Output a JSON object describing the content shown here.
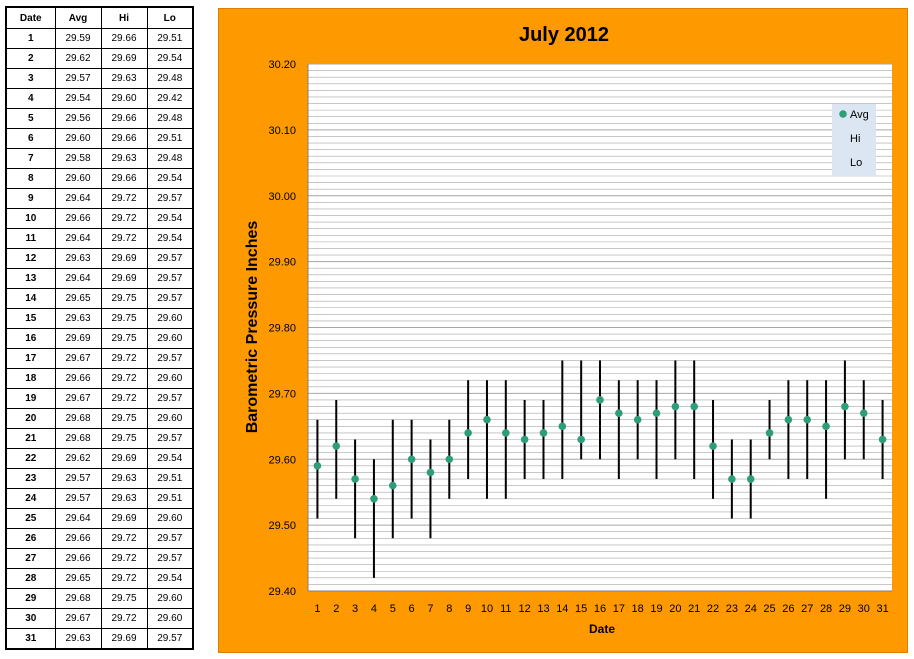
{
  "table": {
    "headers": [
      "Date",
      "Avg",
      "Hi",
      "Lo"
    ],
    "rows": [
      [
        "1",
        "29.59",
        "29.66",
        "29.51"
      ],
      [
        "2",
        "29.62",
        "29.69",
        "29.54"
      ],
      [
        "3",
        "29.57",
        "29.63",
        "29.48"
      ],
      [
        "4",
        "29.54",
        "29.60",
        "29.42"
      ],
      [
        "5",
        "29.56",
        "29.66",
        "29.48"
      ],
      [
        "6",
        "29.60",
        "29.66",
        "29.51"
      ],
      [
        "7",
        "29.58",
        "29.63",
        "29.48"
      ],
      [
        "8",
        "29.60",
        "29.66",
        "29.54"
      ],
      [
        "9",
        "29.64",
        "29.72",
        "29.57"
      ],
      [
        "10",
        "29.66",
        "29.72",
        "29.54"
      ],
      [
        "11",
        "29.64",
        "29.72",
        "29.54"
      ],
      [
        "12",
        "29.63",
        "29.69",
        "29.57"
      ],
      [
        "13",
        "29.64",
        "29.69",
        "29.57"
      ],
      [
        "14",
        "29.65",
        "29.75",
        "29.57"
      ],
      [
        "15",
        "29.63",
        "29.75",
        "29.60"
      ],
      [
        "16",
        "29.69",
        "29.75",
        "29.60"
      ],
      [
        "17",
        "29.67",
        "29.72",
        "29.57"
      ],
      [
        "18",
        "29.66",
        "29.72",
        "29.60"
      ],
      [
        "19",
        "29.67",
        "29.72",
        "29.57"
      ],
      [
        "20",
        "29.68",
        "29.75",
        "29.60"
      ],
      [
        "21",
        "29.68",
        "29.75",
        "29.57"
      ],
      [
        "22",
        "29.62",
        "29.69",
        "29.54"
      ],
      [
        "23",
        "29.57",
        "29.63",
        "29.51"
      ],
      [
        "24",
        "29.57",
        "29.63",
        "29.51"
      ],
      [
        "25",
        "29.64",
        "29.69",
        "29.60"
      ],
      [
        "26",
        "29.66",
        "29.72",
        "29.57"
      ],
      [
        "27",
        "29.66",
        "29.72",
        "29.57"
      ],
      [
        "28",
        "29.65",
        "29.72",
        "29.54"
      ],
      [
        "29",
        "29.68",
        "29.75",
        "29.60"
      ],
      [
        "30",
        "29.67",
        "29.72",
        "29.60"
      ],
      [
        "31",
        "29.63",
        "29.69",
        "29.57"
      ]
    ]
  },
  "chart_data": {
    "type": "scatter",
    "title": "July 2012",
    "xlabel": "Date",
    "ylabel": "Barometric Pressure Inches",
    "ylim": [
      29.4,
      30.2
    ],
    "yticks": [
      "29.40",
      "29.50",
      "29.60",
      "29.70",
      "29.80",
      "29.90",
      "30.00",
      "30.10",
      "30.20"
    ],
    "x": [
      1,
      2,
      3,
      4,
      5,
      6,
      7,
      8,
      9,
      10,
      11,
      12,
      13,
      14,
      15,
      16,
      17,
      18,
      19,
      20,
      21,
      22,
      23,
      24,
      25,
      26,
      27,
      28,
      29,
      30,
      31
    ],
    "series": [
      {
        "name": "Avg",
        "values": [
          29.59,
          29.62,
          29.57,
          29.54,
          29.56,
          29.6,
          29.58,
          29.6,
          29.64,
          29.66,
          29.64,
          29.63,
          29.64,
          29.65,
          29.63,
          29.69,
          29.67,
          29.66,
          29.67,
          29.68,
          29.68,
          29.62,
          29.57,
          29.57,
          29.64,
          29.66,
          29.66,
          29.65,
          29.68,
          29.67,
          29.63
        ]
      },
      {
        "name": "Hi",
        "values": [
          29.66,
          29.69,
          29.63,
          29.6,
          29.66,
          29.66,
          29.63,
          29.66,
          29.72,
          29.72,
          29.72,
          29.69,
          29.69,
          29.75,
          29.75,
          29.75,
          29.72,
          29.72,
          29.72,
          29.75,
          29.75,
          29.69,
          29.63,
          29.63,
          29.69,
          29.72,
          29.72,
          29.72,
          29.75,
          29.72,
          29.69
        ]
      },
      {
        "name": "Lo",
        "values": [
          29.51,
          29.54,
          29.48,
          29.42,
          29.48,
          29.51,
          29.48,
          29.54,
          29.57,
          29.54,
          29.54,
          29.57,
          29.57,
          29.57,
          29.6,
          29.6,
          29.57,
          29.6,
          29.57,
          29.6,
          29.57,
          29.54,
          29.51,
          29.51,
          29.6,
          29.57,
          29.57,
          29.54,
          29.6,
          29.6,
          29.57
        ]
      }
    ],
    "legend": [
      "Avg",
      "Hi",
      "Lo"
    ],
    "legend_position": "top-right",
    "grid": true,
    "colors": {
      "background": "#FF9900",
      "plot": "#FFFFFF",
      "avg_marker": "#2E9E78",
      "bar": "#000000",
      "grid": "#A6A6A6",
      "legend_bg": "#DCE6F2"
    }
  }
}
